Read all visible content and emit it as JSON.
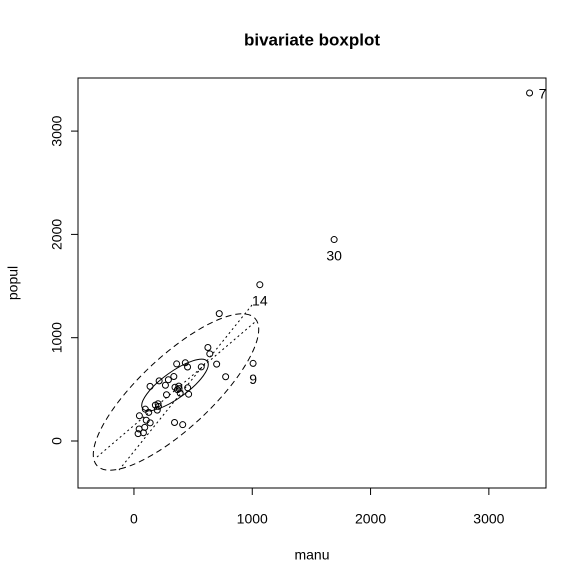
{
  "chart_data": {
    "type": "scatter",
    "title": "bivariate boxplot",
    "x_label": "manu",
    "y_label": "popul",
    "x": [
      44,
      46,
      368,
      625,
      391,
      35,
      3344,
      462,
      1007,
      266,
      641,
      454,
      104,
      1064,
      412,
      721,
      361,
      136,
      381,
      91,
      291,
      337,
      207,
      569,
      699,
      275,
      204,
      96,
      181,
      1692,
      213,
      347,
      343,
      197,
      137,
      453,
      379,
      775,
      434,
      125,
      80
    ],
    "y": [
      116,
      244,
      497,
      905,
      463,
      71,
      3369,
      453,
      751,
      540,
      844,
      515,
      201,
      1513,
      158,
      1233,
      746,
      529,
      507,
      132,
      593,
      624,
      335,
      717,
      744,
      448,
      361,
      308,
      347,
      1950,
      582,
      520,
      179,
      299,
      176,
      716,
      531,
      622,
      757,
      277,
      80
    ],
    "point_labels": [
      null,
      null,
      null,
      null,
      null,
      null,
      "7",
      null,
      "9",
      null,
      null,
      null,
      null,
      "14",
      null,
      null,
      null,
      null,
      null,
      null,
      null,
      null,
      null,
      null,
      null,
      null,
      null,
      null,
      null,
      "30",
      null,
      null,
      null,
      null,
      null,
      null,
      null,
      null,
      null,
      null,
      null
    ],
    "color": "#000000",
    "xlim": [
      -473,
      3483
    ],
    "ylim": [
      -455,
      3514
    ],
    "xticks": [
      0,
      1000,
      2000,
      3000
    ],
    "yticks": [
      0,
      1000,
      2000,
      3000
    ]
  }
}
